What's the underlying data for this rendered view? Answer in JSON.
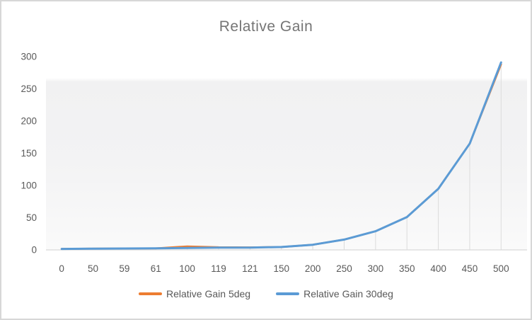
{
  "chart": {
    "colors": {
      "title_text": "#757575",
      "axis_text": "#595959",
      "axis_line": "#d9d9d9",
      "drop_line": "#dcdcdc",
      "frame_border": "#d7d7d7",
      "plot_fill_top": "#ffffff",
      "plot_fill_gray": "#f1f1f2",
      "plot_fill_bottom": "#fafafa"
    }
  },
  "chart_data": {
    "type": "line",
    "title": "Relative Gain",
    "categories": [
      "0",
      "50",
      "59",
      "61",
      "100",
      "119",
      "121",
      "150",
      "200",
      "250",
      "300",
      "350",
      "400",
      "450",
      "500"
    ],
    "series": [
      {
        "name": "Relative Gain 5deg",
        "color": "#ED7D31",
        "values": [
          1.5,
          2,
          2.2,
          2.4,
          5.5,
          4.2,
          4,
          4.5,
          8,
          16,
          29,
          51,
          95,
          165,
          288
        ]
      },
      {
        "name": "Relative Gain 30deg",
        "color": "#5B9BD5",
        "values": [
          1.5,
          2,
          2.2,
          2.4,
          3,
          3.5,
          3.6,
          4.5,
          8,
          16,
          29,
          51,
          95,
          165,
          291
        ]
      }
    ],
    "yticks": [
      0,
      50,
      100,
      150,
      200,
      250,
      300
    ],
    "ylim": [
      0,
      300
    ],
    "xlabel": "",
    "ylabel": "",
    "legend_position": "bottom",
    "grid": "vertical-drop-lines"
  }
}
